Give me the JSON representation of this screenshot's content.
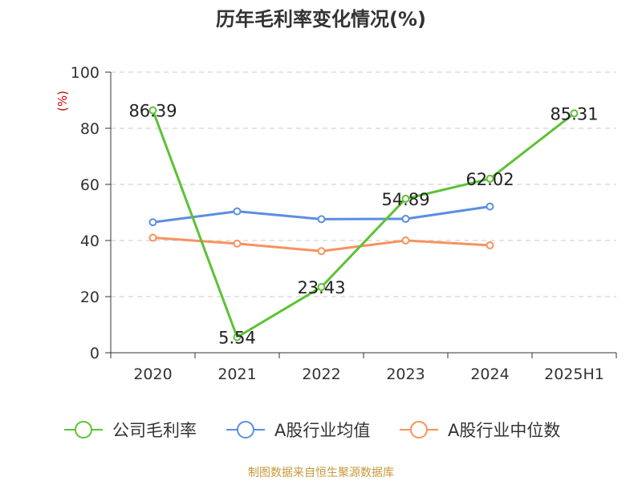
{
  "chart_data": {
    "type": "line",
    "title": "历年毛利率变化情况(%)",
    "ylabel": "(%)",
    "xlabel": "",
    "categories": [
      "2020",
      "2021",
      "2022",
      "2023",
      "2024",
      "2025H1"
    ],
    "ylim": [
      0,
      100
    ],
    "yticks": [
      0,
      20,
      40,
      60,
      80,
      100
    ],
    "grid": true,
    "legend_position": "bottom",
    "series": [
      {
        "name": "公司毛利率",
        "color": "#5cc234",
        "values": [
          86.39,
          5.54,
          23.43,
          54.89,
          62.02,
          85.31
        ],
        "labels": [
          "86.39",
          "5.54",
          "23.43",
          "54.89",
          "62.02",
          "85.31"
        ]
      },
      {
        "name": "A股行业均值",
        "color": "#5b8ee0",
        "values": [
          46.5,
          50.4,
          47.6,
          47.7,
          52.1,
          null
        ]
      },
      {
        "name": "A股行业中位数",
        "color": "#f7925e",
        "values": [
          41.0,
          38.9,
          36.2,
          40.0,
          38.3,
          null
        ]
      }
    ]
  },
  "source": "制图数据来自恒生聚源数据库"
}
